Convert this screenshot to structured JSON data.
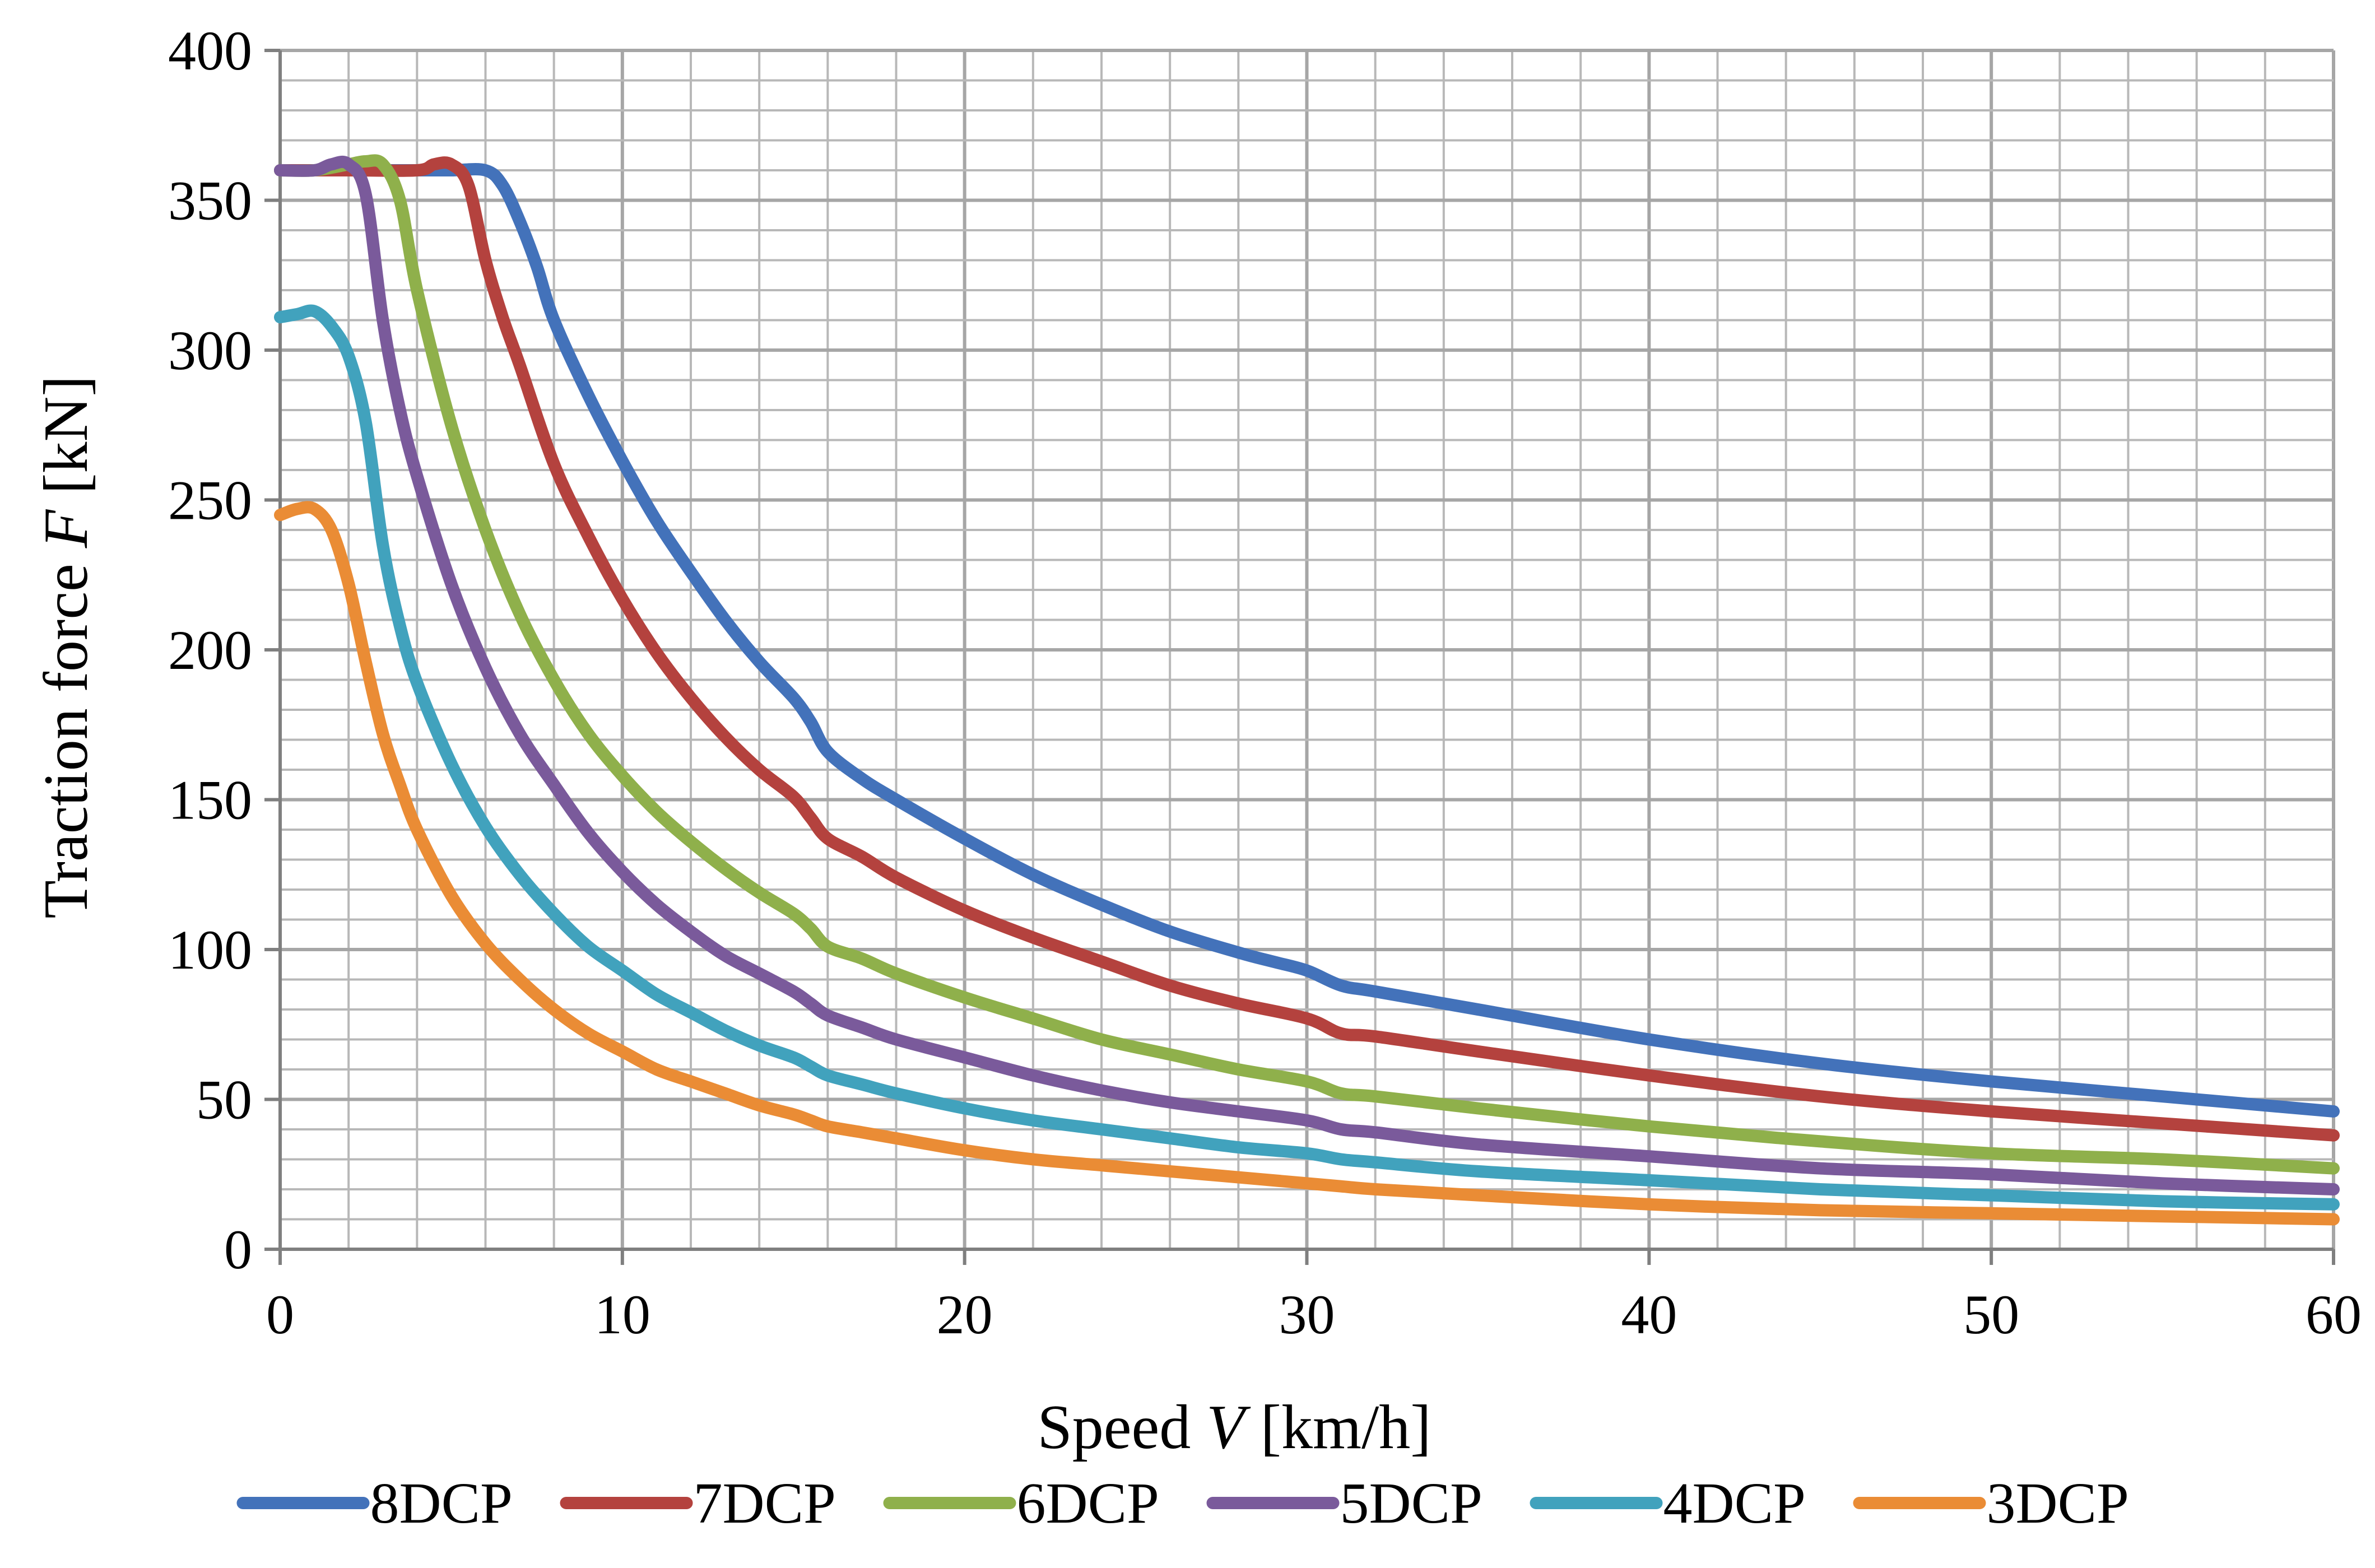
{
  "chart_data": {
    "type": "line",
    "title": "",
    "xlabel": {
      "prefix": "Speed ",
      "variable": "V",
      "unit": " [km/h]"
    },
    "ylabel": {
      "prefix": "Traction force ",
      "variable": "F",
      "unit": " [kN]"
    },
    "xlim": [
      0,
      60
    ],
    "ylim": [
      0,
      400
    ],
    "x_ticks": [
      0,
      10,
      20,
      30,
      40,
      50,
      60
    ],
    "y_ticks": [
      0,
      50,
      100,
      150,
      200,
      250,
      300,
      350,
      400
    ],
    "x_minor_step": 2,
    "y_minor_step": 10,
    "grid": true,
    "legend_position": "bottom",
    "series": [
      {
        "name": "8DCP",
        "color": "#4372ba",
        "points": [
          [
            0,
            360
          ],
          [
            2,
            360
          ],
          [
            4,
            360
          ],
          [
            5,
            360
          ],
          [
            6,
            360
          ],
          [
            6.5,
            355
          ],
          [
            7,
            343
          ],
          [
            7.5,
            328
          ],
          [
            8,
            310
          ],
          [
            9,
            285
          ],
          [
            10,
            263
          ],
          [
            11,
            243
          ],
          [
            12,
            226
          ],
          [
            13,
            210
          ],
          [
            14,
            196
          ],
          [
            15,
            184
          ],
          [
            15.5,
            176
          ],
          [
            16,
            166
          ],
          [
            17,
            157
          ],
          [
            18,
            150
          ],
          [
            20,
            137
          ],
          [
            22,
            125
          ],
          [
            24,
            115
          ],
          [
            26,
            106
          ],
          [
            28,
            99
          ],
          [
            29,
            96
          ],
          [
            30,
            93
          ],
          [
            31,
            88
          ],
          [
            32,
            86
          ],
          [
            35,
            80
          ],
          [
            40,
            70
          ],
          [
            45,
            62
          ],
          [
            50,
            56
          ],
          [
            55,
            51
          ],
          [
            60,
            46
          ]
        ]
      },
      {
        "name": "7DCP",
        "color": "#b4423e",
        "points": [
          [
            0,
            360
          ],
          [
            2,
            360
          ],
          [
            4,
            360
          ],
          [
            4.5,
            362
          ],
          [
            5,
            362
          ],
          [
            5.5,
            355
          ],
          [
            6,
            330
          ],
          [
            6.5,
            311
          ],
          [
            7,
            295
          ],
          [
            8,
            262
          ],
          [
            9,
            238
          ],
          [
            10,
            217
          ],
          [
            11,
            199
          ],
          [
            12,
            184
          ],
          [
            13,
            171
          ],
          [
            14,
            160
          ],
          [
            15,
            151
          ],
          [
            15.5,
            144
          ],
          [
            16,
            137
          ],
          [
            17,
            131
          ],
          [
            18,
            124
          ],
          [
            20,
            113
          ],
          [
            22,
            104
          ],
          [
            24,
            96
          ],
          [
            26,
            88
          ],
          [
            28,
            82
          ],
          [
            30,
            77
          ],
          [
            31,
            72
          ],
          [
            32,
            71
          ],
          [
            35,
            66
          ],
          [
            40,
            58
          ],
          [
            45,
            51
          ],
          [
            50,
            46
          ],
          [
            55,
            42
          ],
          [
            60,
            38
          ]
        ]
      },
      {
        "name": "6DCP",
        "color": "#8fb04b",
        "points": [
          [
            0,
            360
          ],
          [
            1,
            360
          ],
          [
            2,
            362
          ],
          [
            2.5,
            363
          ],
          [
            3,
            362
          ],
          [
            3.5,
            350
          ],
          [
            4,
            320
          ],
          [
            5,
            275
          ],
          [
            6,
            240
          ],
          [
            7,
            212
          ],
          [
            8,
            190
          ],
          [
            9,
            172
          ],
          [
            10,
            158
          ],
          [
            11,
            146
          ],
          [
            12,
            136
          ],
          [
            13,
            127
          ],
          [
            14,
            119
          ],
          [
            15,
            112
          ],
          [
            15.5,
            107
          ],
          [
            16,
            101
          ],
          [
            17,
            97
          ],
          [
            18,
            92
          ],
          [
            20,
            84
          ],
          [
            22,
            77
          ],
          [
            24,
            70
          ],
          [
            26,
            65
          ],
          [
            28,
            60
          ],
          [
            30,
            56
          ],
          [
            31,
            52
          ],
          [
            32,
            51
          ],
          [
            35,
            47
          ],
          [
            40,
            41
          ],
          [
            45,
            36
          ],
          [
            50,
            32
          ],
          [
            55,
            30
          ],
          [
            60,
            27
          ]
        ]
      },
      {
        "name": "5DCP",
        "color": "#7a5a9b",
        "points": [
          [
            0,
            360
          ],
          [
            1,
            360
          ],
          [
            1.5,
            362
          ],
          [
            2,
            362
          ],
          [
            2.5,
            352
          ],
          [
            3,
            310
          ],
          [
            3.5,
            280
          ],
          [
            4,
            258
          ],
          [
            5,
            222
          ],
          [
            6,
            194
          ],
          [
            7,
            172
          ],
          [
            8,
            155
          ],
          [
            9,
            139
          ],
          [
            10,
            126
          ],
          [
            11,
            115
          ],
          [
            12,
            106
          ],
          [
            13,
            98
          ],
          [
            14,
            92
          ],
          [
            15,
            86
          ],
          [
            15.5,
            82
          ],
          [
            16,
            78
          ],
          [
            17,
            74
          ],
          [
            18,
            70
          ],
          [
            20,
            64
          ],
          [
            22,
            58
          ],
          [
            24,
            53
          ],
          [
            26,
            49
          ],
          [
            28,
            46
          ],
          [
            30,
            43
          ],
          [
            31,
            40
          ],
          [
            32,
            39
          ],
          [
            35,
            35
          ],
          [
            40,
            31
          ],
          [
            45,
            27
          ],
          [
            50,
            25
          ],
          [
            55,
            22
          ],
          [
            60,
            20
          ]
        ]
      },
      {
        "name": "4DCP",
        "color": "#41a2bd",
        "points": [
          [
            0,
            311
          ],
          [
            0.5,
            312
          ],
          [
            1,
            313
          ],
          [
            1.5,
            308
          ],
          [
            2,
            298
          ],
          [
            2.5,
            276
          ],
          [
            3,
            235
          ],
          [
            3.5,
            208
          ],
          [
            4,
            189
          ],
          [
            5,
            162
          ],
          [
            6,
            141
          ],
          [
            7,
            125
          ],
          [
            8,
            112
          ],
          [
            9,
            101
          ],
          [
            10,
            93
          ],
          [
            11,
            85
          ],
          [
            12,
            79
          ],
          [
            13,
            73
          ],
          [
            14,
            68
          ],
          [
            15,
            64
          ],
          [
            15.5,
            61
          ],
          [
            16,
            58
          ],
          [
            17,
            55
          ],
          [
            18,
            52
          ],
          [
            20,
            47
          ],
          [
            22,
            43
          ],
          [
            24,
            40
          ],
          [
            26,
            37
          ],
          [
            28,
            34
          ],
          [
            30,
            32
          ],
          [
            31,
            30
          ],
          [
            32,
            29
          ],
          [
            35,
            26
          ],
          [
            40,
            23
          ],
          [
            45,
            20
          ],
          [
            50,
            18
          ],
          [
            55,
            16
          ],
          [
            60,
            15
          ]
        ]
      },
      {
        "name": "3DCP",
        "color": "#ea8c35",
        "points": [
          [
            0,
            245
          ],
          [
            0.5,
            247
          ],
          [
            1,
            247
          ],
          [
            1.5,
            240
          ],
          [
            2,
            222
          ],
          [
            2.5,
            196
          ],
          [
            3,
            172
          ],
          [
            3.5,
            155
          ],
          [
            4,
            140
          ],
          [
            5,
            118
          ],
          [
            6,
            102
          ],
          [
            7,
            90
          ],
          [
            8,
            80
          ],
          [
            9,
            72
          ],
          [
            10,
            66
          ],
          [
            11,
            60
          ],
          [
            12,
            56
          ],
          [
            13,
            52
          ],
          [
            14,
            48
          ],
          [
            15,
            45
          ],
          [
            15.5,
            43
          ],
          [
            16,
            41
          ],
          [
            17,
            39
          ],
          [
            18,
            37
          ],
          [
            20,
            33
          ],
          [
            22,
            30
          ],
          [
            24,
            28
          ],
          [
            26,
            26
          ],
          [
            28,
            24
          ],
          [
            30,
            22
          ],
          [
            31,
            21
          ],
          [
            32,
            20
          ],
          [
            35,
            18
          ],
          [
            40,
            15
          ],
          [
            45,
            13
          ],
          [
            50,
            12
          ],
          [
            55,
            11
          ],
          [
            60,
            10
          ]
        ]
      }
    ]
  }
}
